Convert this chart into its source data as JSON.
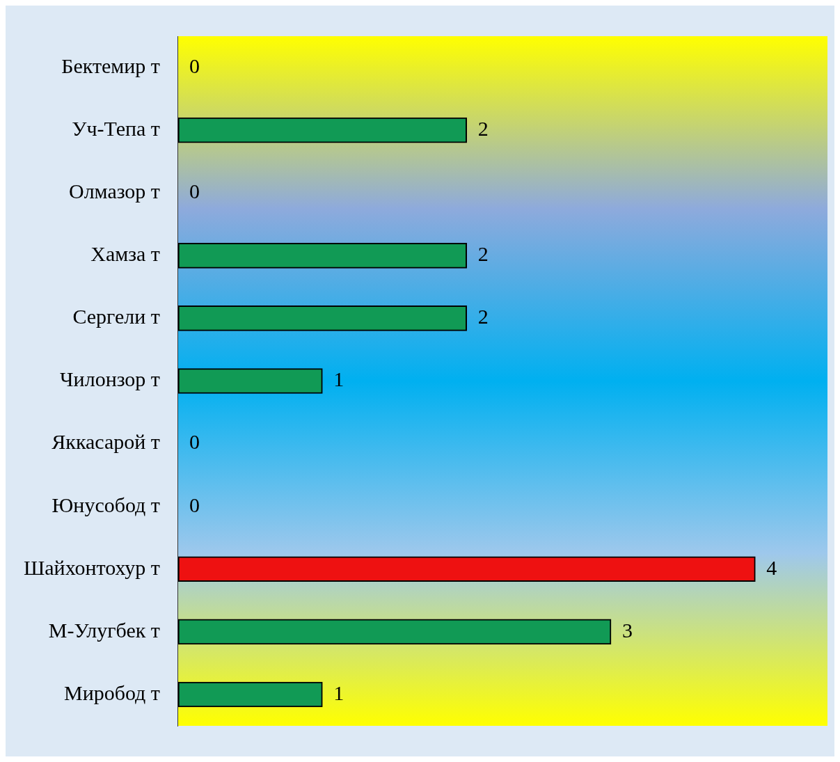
{
  "chart_data": {
    "type": "bar",
    "orientation": "horizontal",
    "categories": [
      "Бектемир т",
      "Уч-Тепа т",
      "Олмазор т",
      "Хамза т",
      "Сергели т",
      "Чилонзор т",
      "Яккасарой т",
      "Юнусобод т",
      "Шайхонтохур т",
      "М-Улугбек т",
      "Миробод т"
    ],
    "values": [
      0,
      2,
      0,
      2,
      2,
      1,
      0,
      0,
      4,
      3,
      1
    ],
    "colors": [
      "#119a55",
      "#119a55",
      "#119a55",
      "#119a55",
      "#119a55",
      "#119a55",
      "#119a55",
      "#119a55",
      "#ee1111",
      "#119a55",
      "#119a55"
    ],
    "xlim": [
      0,
      4.5
    ],
    "tick_labels": "y",
    "data_labels": true
  }
}
